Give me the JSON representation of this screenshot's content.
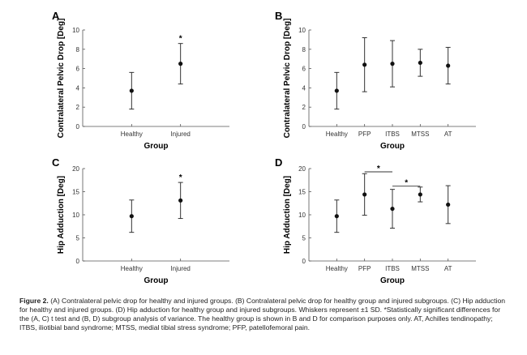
{
  "caption": {
    "label": "Figure 2.",
    "text": "(A) Contralateral pelvic drop for healthy and injured groups. (B) Contralateral pelvic drop for healthy group and injured subgroups. (C) Hip adduction for healthy and injured groups. (D) Hip adduction for healthy group and injured subgroups. Whiskers represent ±1 SD. *Statistically significant differences for the (A, C) t test and (B, D) subgroup analysis of variance. The healthy group is shown in B and D for comparison purposes only. AT, Achilles tendinopathy; ITBS, iliotibial band syndrome; MTSS, medial tibial stress syndrome; PFP, patellofemoral pain."
  },
  "chart_data": [
    {
      "panel": "A",
      "type": "errorbar",
      "title": "",
      "xlabel": "Group",
      "ylabel": "Contralateral Pelvic Drop [Deg]",
      "ylim": [
        0,
        10
      ],
      "yticks": [
        0,
        2,
        4,
        6,
        8,
        10
      ],
      "categories": [
        "Healthy",
        "Injured"
      ],
      "means": [
        3.7,
        6.5
      ],
      "sd": [
        1.9,
        2.1
      ],
      "annotations": [
        {
          "text": "*",
          "category": "Injured"
        }
      ],
      "brackets": []
    },
    {
      "panel": "B",
      "type": "errorbar",
      "title": "",
      "xlabel": "Group",
      "ylabel": "Contralateral Pelvic Drop [Deg]",
      "ylim": [
        0,
        10
      ],
      "yticks": [
        0,
        2,
        4,
        6,
        8,
        10
      ],
      "categories": [
        "Healthy",
        "PFP",
        "ITBS",
        "MTSS",
        "AT"
      ],
      "means": [
        3.7,
        6.4,
        6.5,
        6.6,
        6.3
      ],
      "sd": [
        1.9,
        2.8,
        2.4,
        1.4,
        1.9
      ],
      "annotations": [],
      "brackets": []
    },
    {
      "panel": "C",
      "type": "errorbar",
      "title": "",
      "xlabel": "Group",
      "ylabel": "Hip Adduction [Deg]",
      "ylim": [
        0,
        20
      ],
      "yticks": [
        0,
        5,
        10,
        15,
        20
      ],
      "categories": [
        "Healthy",
        "Injured"
      ],
      "means": [
        9.7,
        13.1
      ],
      "sd": [
        3.5,
        3.9
      ],
      "annotations": [
        {
          "text": "*",
          "category": "Injured"
        }
      ],
      "brackets": []
    },
    {
      "panel": "D",
      "type": "errorbar",
      "title": "",
      "xlabel": "Group",
      "ylabel": "Hip Adduction [Deg]",
      "ylim": [
        0,
        20
      ],
      "yticks": [
        0,
        5,
        10,
        15,
        20
      ],
      "categories": [
        "Healthy",
        "PFP",
        "ITBS",
        "MTSS",
        "AT"
      ],
      "means": [
        9.7,
        14.4,
        11.3,
        14.4,
        12.2
      ],
      "sd": [
        3.5,
        4.5,
        4.2,
        1.6,
        4.1
      ],
      "annotations": [],
      "brackets": [
        {
          "from": "PFP",
          "to": "ITBS",
          "y": 19.3,
          "text": "*"
        },
        {
          "from": "ITBS",
          "to": "MTSS",
          "y": 16.2,
          "text": "*"
        }
      ]
    }
  ]
}
